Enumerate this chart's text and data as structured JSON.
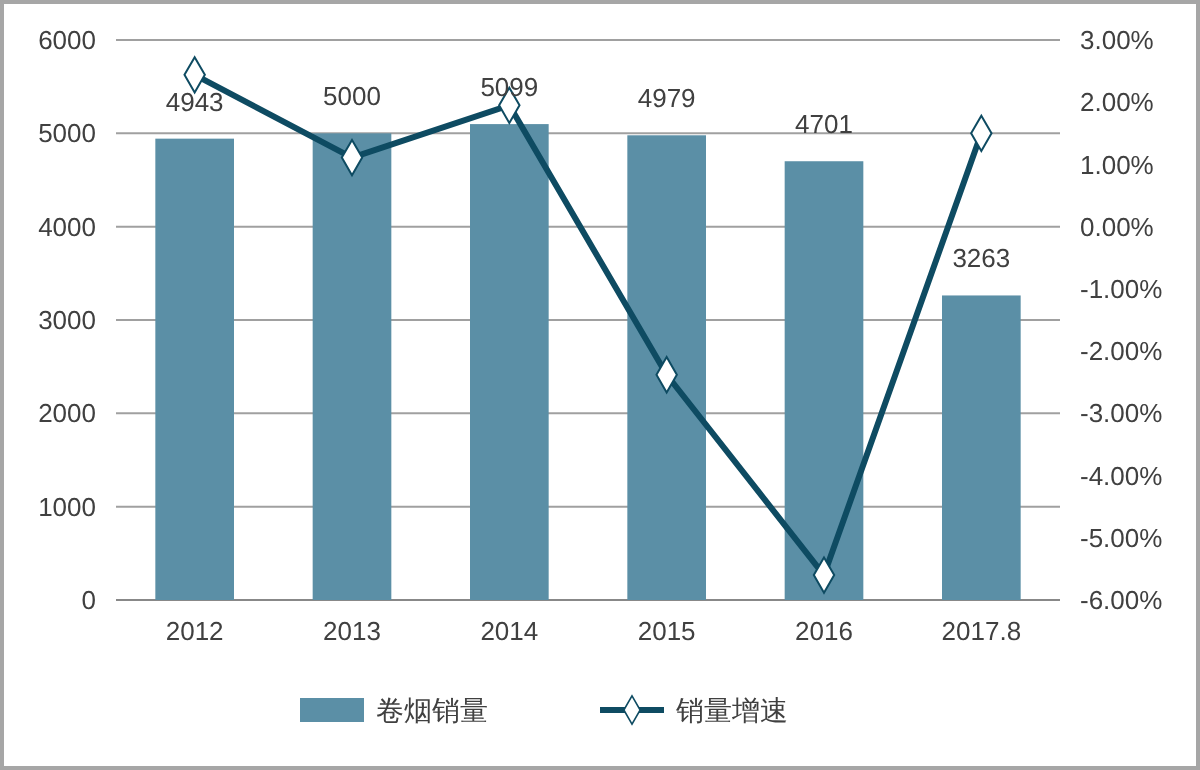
{
  "chart_data": {
    "type": "bar",
    "categories": [
      "2012",
      "2013",
      "2014",
      "2015",
      "2016",
      "2017.8"
    ],
    "series": [
      {
        "name": "卷烟销量",
        "color": "#5b8fa6",
        "values": [
          4943,
          5000,
          5099,
          4979,
          4701,
          3263
        ],
        "value_labels": [
          "4943",
          "5000",
          "5099",
          "4979",
          "4701",
          "3263"
        ]
      },
      {
        "name": "销量增速",
        "type": "line",
        "axis": "y2",
        "color": "#0e4b62",
        "marker": "diamond",
        "values": [
          2.44,
          1.11,
          1.95,
          -2.38,
          -5.6,
          1.5
        ]
      }
    ],
    "ylim": [
      0,
      6000
    ],
    "yticks": [
      0,
      1000,
      2000,
      3000,
      4000,
      5000,
      6000
    ],
    "y2lim": [
      -6,
      3
    ],
    "y2ticks": [
      {
        "value": -6,
        "label": "-6.00%"
      },
      {
        "value": -5,
        "label": "-5.00%"
      },
      {
        "value": -4,
        "label": "-4.00%"
      },
      {
        "value": -3,
        "label": "-3.00%"
      },
      {
        "value": -2,
        "label": "-2.00%"
      },
      {
        "value": -1,
        "label": "-1.00%"
      },
      {
        "value": 0,
        "label": "0.00%"
      },
      {
        "value": 1,
        "label": "1.00%"
      },
      {
        "value": 2,
        "label": "2.00%"
      },
      {
        "value": 3,
        "label": "3.00%"
      }
    ],
    "grid": "y",
    "legend": "bottom"
  }
}
